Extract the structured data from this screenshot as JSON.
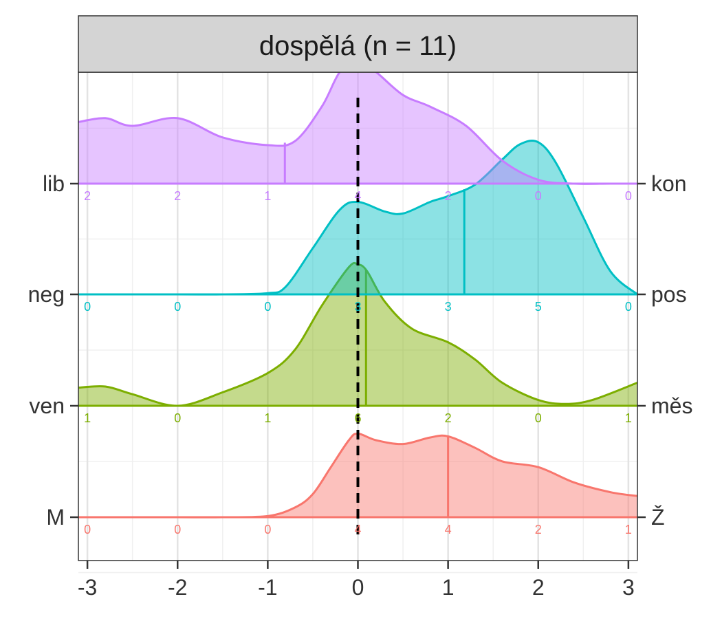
{
  "chart_data": {
    "type": "ridgeline",
    "title": "dospělá (n = 11)",
    "xlabel": "",
    "ylabel": "",
    "xlim": [
      -3.1,
      3.1
    ],
    "x_ticks": [
      -3,
      -2,
      -1,
      0,
      1,
      2,
      3
    ],
    "x_tick_labels": [
      "-3",
      "-2",
      "-1",
      "0",
      "1",
      "2",
      "3"
    ],
    "reference_line_x": 0,
    "grid": true,
    "count_positions": [
      -3,
      -2,
      -1,
      0,
      1,
      2,
      3
    ],
    "series": [
      {
        "left_label": "M",
        "right_label": "Ž",
        "color": "#F8766D",
        "mean": 1.0,
        "counts": [
          "0",
          "0",
          "0",
          "4",
          "4",
          "2",
          "1"
        ],
        "density_x": [
          -3.1,
          -2.5,
          -2.0,
          -1.5,
          -1.0,
          -0.7,
          -0.5,
          -0.3,
          -0.1,
          0.0,
          0.2,
          0.5,
          0.8,
          1.0,
          1.3,
          1.6,
          2.0,
          2.4,
          2.8,
          3.1
        ],
        "density_y": [
          0.0,
          0.0,
          0.0,
          0.0,
          0.003,
          0.025,
          0.06,
          0.13,
          0.2,
          0.217,
          0.2,
          0.19,
          0.207,
          0.21,
          0.18,
          0.145,
          0.13,
          0.09,
          0.065,
          0.055
        ]
      },
      {
        "left_label": "ven",
        "right_label": "měs",
        "color": "#7CAE00",
        "mean": 0.09,
        "counts": [
          "1",
          "0",
          "1",
          "6",
          "2",
          "0",
          "1"
        ],
        "density_x": [
          -3.1,
          -2.8,
          -2.5,
          -2.0,
          -1.5,
          -1.0,
          -0.7,
          -0.4,
          -0.1,
          0.0,
          0.1,
          0.3,
          0.6,
          1.0,
          1.3,
          1.6,
          2.0,
          2.3,
          2.6,
          3.1
        ],
        "density_y": [
          0.047,
          0.05,
          0.03,
          0.0,
          0.035,
          0.085,
          0.145,
          0.26,
          0.36,
          0.367,
          0.35,
          0.27,
          0.2,
          0.165,
          0.12,
          0.06,
          0.015,
          0.005,
          0.015,
          0.06
        ]
      },
      {
        "left_label": "neg",
        "right_label": "pos",
        "color": "#00BFC4",
        "mean": 1.18,
        "counts": [
          "0",
          "0",
          "0",
          "3",
          "3",
          "5",
          "0"
        ],
        "density_x": [
          -3.1,
          -2.0,
          -1.5,
          -1.0,
          -0.8,
          -0.5,
          -0.2,
          0.0,
          0.3,
          0.5,
          0.8,
          1.0,
          1.3,
          1.6,
          1.8,
          2.0,
          2.2,
          2.5,
          2.8,
          3.1
        ],
        "density_y": [
          0.0,
          0.0,
          0.0,
          0.003,
          0.02,
          0.12,
          0.22,
          0.24,
          0.215,
          0.21,
          0.24,
          0.255,
          0.285,
          0.35,
          0.39,
          0.395,
          0.34,
          0.2,
          0.06,
          0.0
        ]
      },
      {
        "left_label": "lib",
        "right_label": "kon",
        "color": "#C77CFF",
        "mean": -0.81,
        "counts": [
          "2",
          "2",
          "1",
          "4",
          "2",
          "0",
          "0"
        ],
        "density_x": [
          -3.1,
          -2.8,
          -2.5,
          -2.0,
          -1.5,
          -1.0,
          -0.7,
          -0.4,
          -0.2,
          0.0,
          0.2,
          0.5,
          0.8,
          1.2,
          1.6,
          2.0,
          2.4,
          2.8,
          3.1
        ],
        "density_y": [
          0.16,
          0.17,
          0.15,
          0.17,
          0.12,
          0.1,
          0.11,
          0.2,
          0.29,
          0.32,
          0.29,
          0.23,
          0.2,
          0.15,
          0.06,
          0.01,
          0.0,
          0.0,
          0.0
        ]
      }
    ]
  }
}
